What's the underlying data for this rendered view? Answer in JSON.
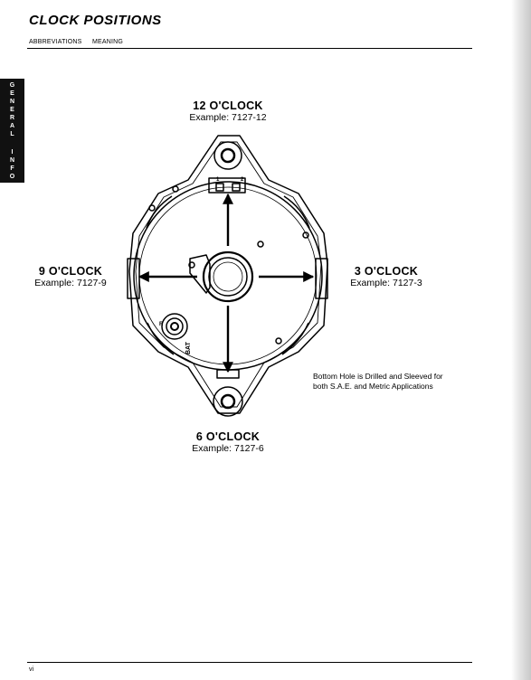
{
  "header": {
    "title": "CLOCK POSITIONS",
    "col_abbreviations": "ABBREVIATIONS",
    "col_meaning": "MEANING"
  },
  "side_tab": {
    "letters": [
      "G",
      "E",
      "N",
      "E",
      "R",
      "A",
      "L",
      "I",
      "N",
      "F",
      "O"
    ]
  },
  "positions": {
    "twelve": {
      "title": "12 O'CLOCK",
      "example": "Example: 7127-12"
    },
    "nine": {
      "title": "9 O'CLOCK",
      "example": "Example: 7127-9"
    },
    "three": {
      "title": "3 O'CLOCK",
      "example": "Example: 7127-3"
    },
    "six": {
      "title": "6 O'CLOCK",
      "example": "Example: 7127-6"
    }
  },
  "note": {
    "line1": "Bottom Hole is Drilled and Sleeved for",
    "line2": "both S.A.E. and Metric Applications"
  },
  "diagram_marks": {
    "terminal_1": "1",
    "terminal_2": "2",
    "bat": "BAT",
    "r": "R"
  },
  "footer": {
    "page_number": "vi"
  }
}
